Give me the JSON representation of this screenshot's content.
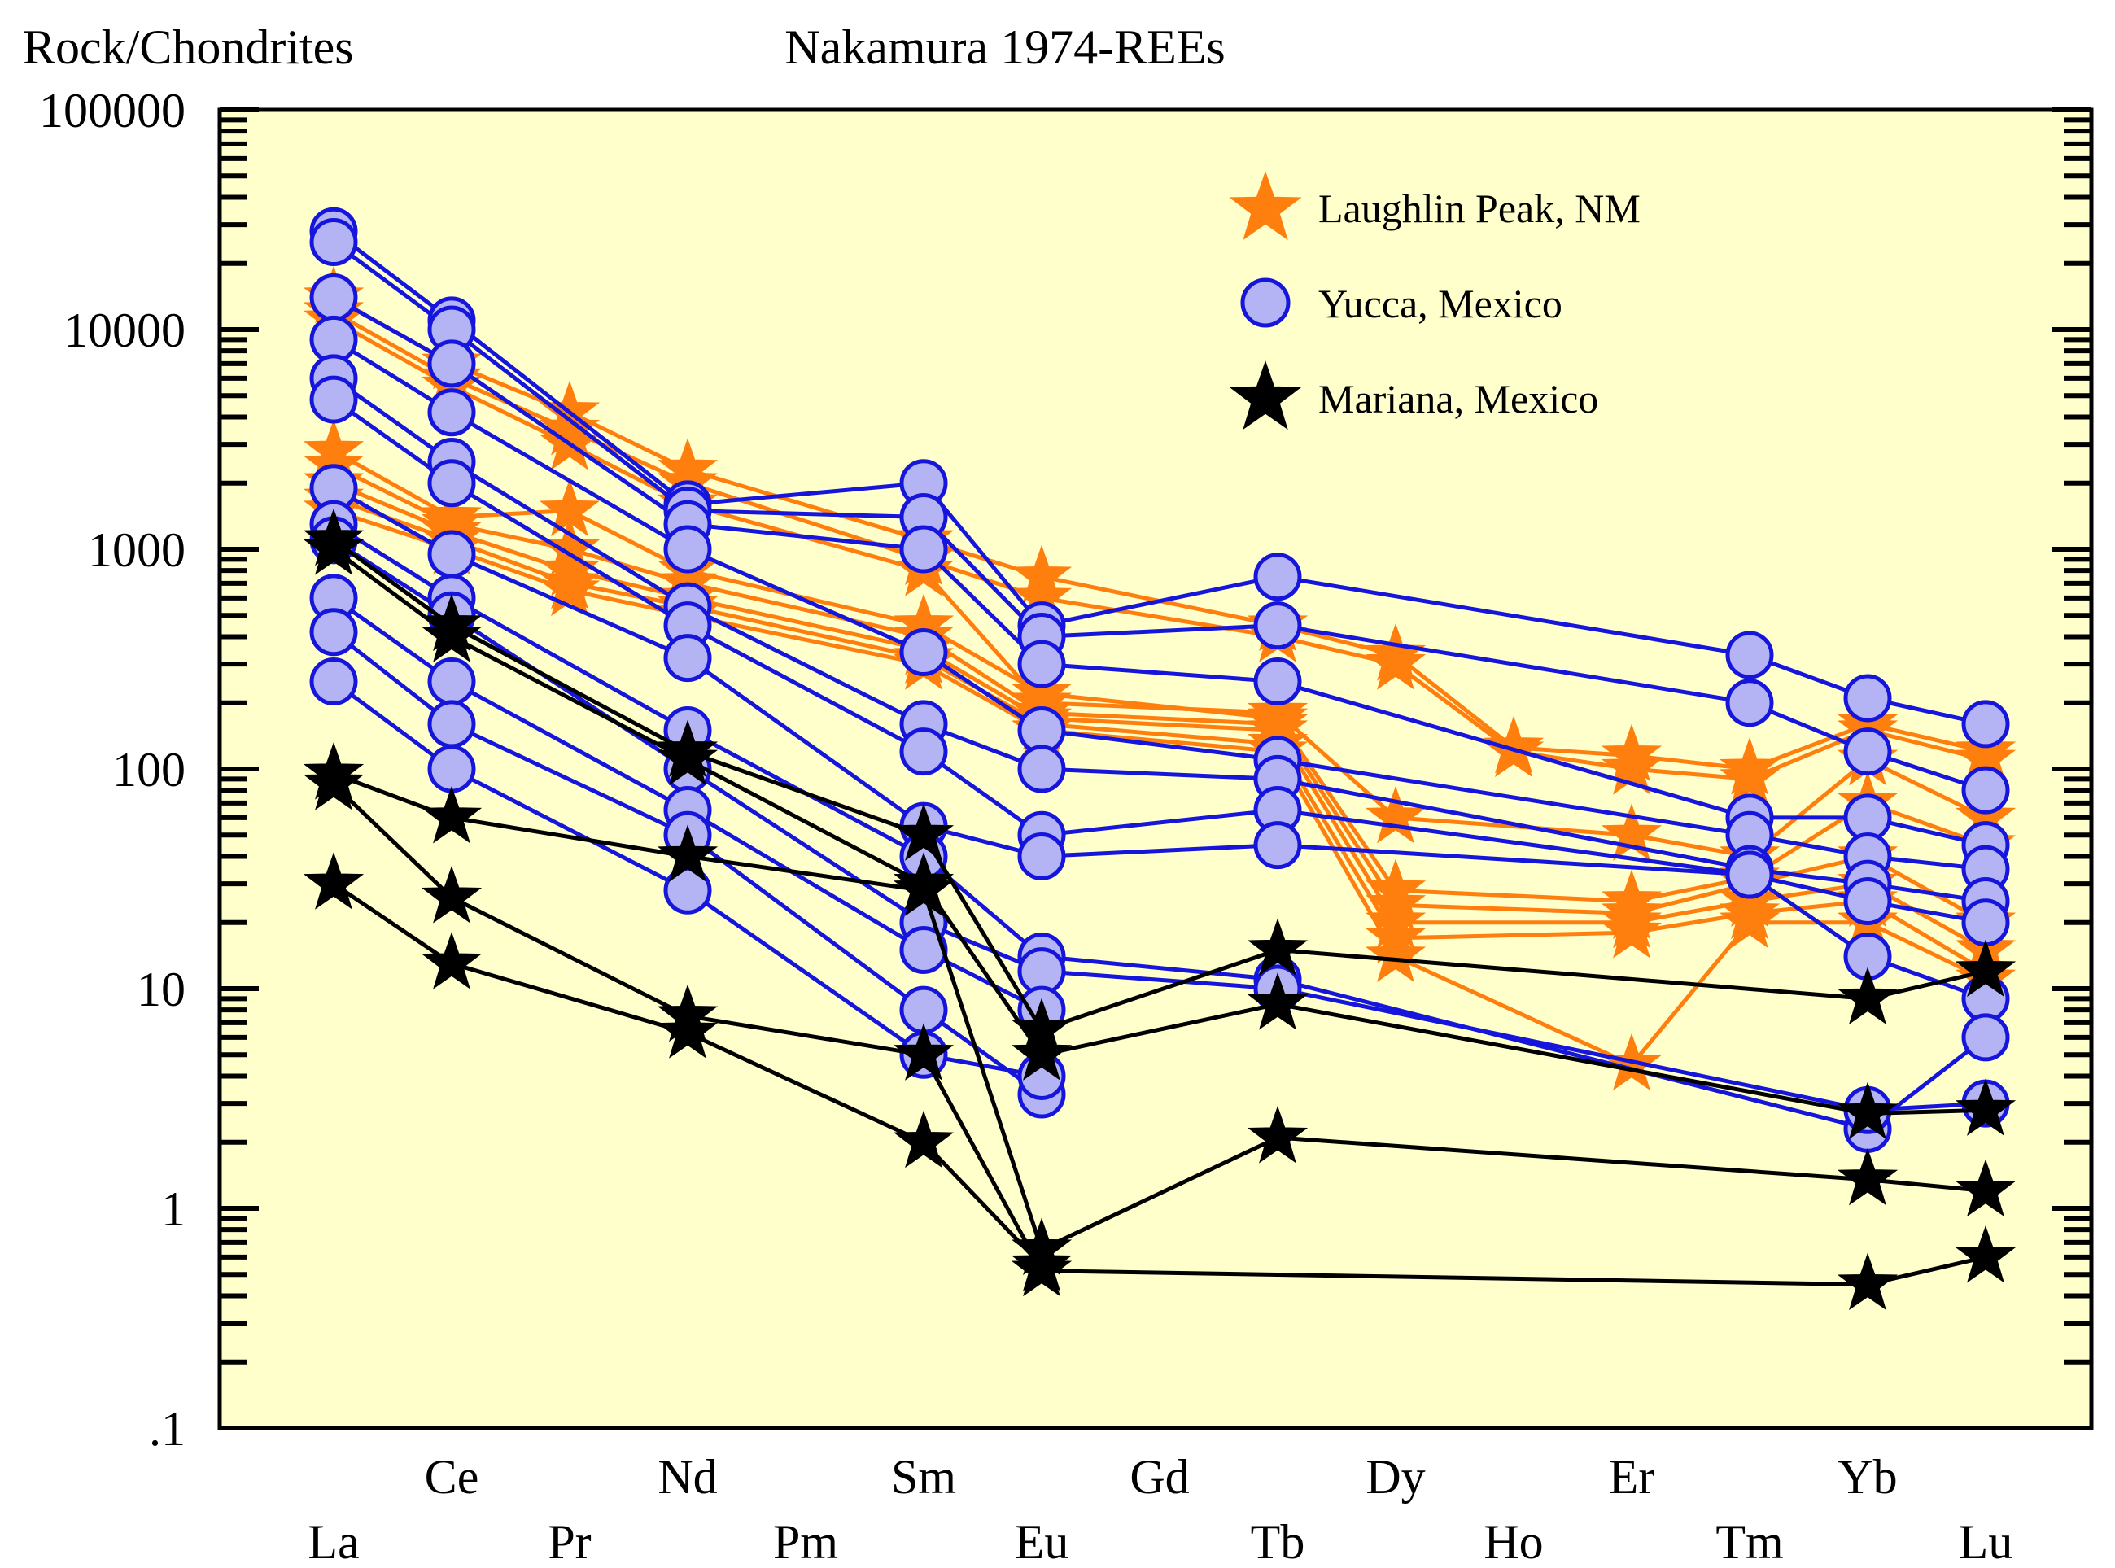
{
  "chart_data": {
    "type": "line",
    "title": "Nakamura 1974-REEs",
    "ylabel": "Rock/Chondrites",
    "yscale": "log",
    "ylim": [
      0.1,
      100000
    ],
    "y_tick_labels": [
      ".1",
      "1",
      "10",
      "100",
      "1000",
      "10000",
      "100000"
    ],
    "elements_upper_row": [
      "Ce",
      "Nd",
      "Sm",
      "Gd",
      "Dy",
      "Er",
      "Yb"
    ],
    "elements_lower_row": [
      "La",
      "Pr",
      "Pm",
      "Eu",
      "Tb",
      "Ho",
      "Tm",
      "Lu"
    ],
    "element_order": [
      "La",
      "Ce",
      "Pr",
      "Nd",
      "Pm",
      "Sm",
      "Eu",
      "Gd",
      "Tb",
      "Dy",
      "Ho",
      "Er",
      "Tm",
      "Yb",
      "Lu"
    ],
    "colors": {
      "plot_background": "#ffffcc",
      "laughlin": "#ff7f0e",
      "yucca_line": "#1515dc",
      "yucca_fill": "#b4b4f5",
      "mariana": "#000000"
    },
    "legend": [
      {
        "label": "Laughlin Peak, NM",
        "marker": "star",
        "color": "#ff7f0e"
      },
      {
        "label": "Yucca, Mexico",
        "marker": "circle",
        "color": "#b4b4f5"
      },
      {
        "label": "Mariana, Mexico",
        "marker": "star",
        "color": "#000000"
      }
    ],
    "series_groups": [
      {
        "name": "Laughlin Peak, NM",
        "marker": "star",
        "series": [
          {
            "x": [
              "La",
              "Ce",
              "Pr",
              "Nd",
              "Sm",
              "Eu",
              "Tb",
              "Dy",
              "Ho",
              "Er",
              "Tm",
              "Yb",
              "Lu"
            ],
            "values": [
              14000,
              7000,
              4200,
              2300,
              1100,
              750,
              450,
              330,
              125,
              115,
              100,
              160,
              120
            ]
          },
          {
            "x": [
              "La",
              "Ce",
              "Pr",
              "Nd",
              "Sm",
              "Eu",
              "Tb",
              "Dy",
              "Ho",
              "Er",
              "Tm",
              "Yb",
              "Lu"
            ],
            "values": [
              12000,
              6000,
              3500,
              2000,
              900,
              600,
              400,
              300,
              120,
              100,
              90,
              150,
              110
            ]
          },
          {
            "x": [
              "La",
              "Ce",
              "Pr",
              "Nd",
              "Sm",
              "Eu",
              "Tb",
              "Dy",
              "Er",
              "Tm",
              "Yb",
              "Lu"
            ],
            "values": [
              11000,
              5500,
              3000,
              1600,
              800,
              200,
              180,
              60,
              50,
              40,
              110,
              60
            ]
          },
          {
            "x": [
              "La",
              "Ce",
              "Pr",
              "Nd",
              "Sm",
              "Eu",
              "Tb",
              "Dy",
              "Er",
              "Tm",
              "Yb",
              "Lu"
            ],
            "values": [
              2800,
              1400,
              1500,
              800,
              450,
              220,
              170,
              28,
              25,
              32,
              70,
              45
            ]
          },
          {
            "x": [
              "La",
              "Ce",
              "Pr",
              "Nd",
              "Sm",
              "Eu",
              "Tb",
              "Dy",
              "Er",
              "Tm",
              "Yb",
              "Lu"
            ],
            "values": [
              2400,
              1300,
              1000,
              700,
              400,
              180,
              160,
              24,
              22,
              30,
              40,
              20
            ]
          },
          {
            "x": [
              "La",
              "Ce",
              "Pr",
              "Nd",
              "Sm",
              "Eu",
              "Tb",
              "Dy",
              "Er",
              "Tm",
              "Yb",
              "Lu"
            ],
            "values": [
              2000,
              1200,
              800,
              600,
              350,
              170,
              150,
              20,
              20,
              25,
              30,
              15
            ]
          },
          {
            "x": [
              "La",
              "Ce",
              "Pr",
              "Nd",
              "Sm",
              "Eu",
              "Tb",
              "Dy",
              "Er",
              "Tm",
              "Yb",
              "Lu"
            ],
            "values": [
              1700,
              1100,
              700,
              550,
              320,
              160,
              130,
              17,
              18,
              22,
              25,
              12
            ]
          },
          {
            "x": [
              "La",
              "Ce",
              "Pr",
              "Nd",
              "Sm",
              "Eu",
              "Tb",
              "Dy",
              "Er",
              "Tm",
              "Yb",
              "Lu"
            ],
            "values": [
              1500,
              1000,
              650,
              500,
              300,
              150,
              120,
              14,
              4.5,
              20,
              20,
              11
            ]
          }
        ]
      },
      {
        "name": "Yucca, Mexico",
        "marker": "circle",
        "series": [
          {
            "x": [
              "La",
              "Ce",
              "Nd",
              "Sm",
              "Eu",
              "Tb",
              "Tm",
              "Yb",
              "Lu"
            ],
            "values": [
              28000,
              11000,
              1600,
              2000,
              450,
              750,
              330,
              210,
              160
            ]
          },
          {
            "x": [
              "La",
              "Ce",
              "Nd",
              "Sm",
              "Eu",
              "Tb",
              "Tm",
              "Yb",
              "Lu"
            ],
            "values": [
              25000,
              10000,
              1500,
              1400,
              400,
              450,
              200,
              120,
              80
            ]
          },
          {
            "x": [
              "La",
              "Ce",
              "Nd",
              "Sm",
              "Eu",
              "Tb",
              "Tm",
              "Yb",
              "Lu"
            ],
            "values": [
              14000,
              7000,
              1300,
              1000,
              300,
              250,
              60,
              60,
              45
            ]
          },
          {
            "x": [
              "La",
              "Ce",
              "Nd",
              "Sm",
              "Eu",
              "Tb",
              "Tm",
              "Yb",
              "Lu"
            ],
            "values": [
              9000,
              4200,
              1000,
              340,
              150,
              110,
              50,
              40,
              35
            ]
          },
          {
            "x": [
              "La",
              "Ce",
              "Nd",
              "Sm",
              "Eu",
              "Tb",
              "Tm",
              "Yb",
              "Lu"
            ],
            "values": [
              6000,
              2500,
              550,
              160,
              100,
              90,
              35,
              30,
              25
            ]
          },
          {
            "x": [
              "La",
              "Ce",
              "Nd",
              "Sm",
              "Eu",
              "Tb",
              "Tm",
              "Yb",
              "Lu"
            ],
            "values": [
              4800,
              2000,
              450,
              120,
              50,
              65,
              33,
              25,
              20
            ]
          },
          {
            "x": [
              "La",
              "Ce",
              "Nd",
              "Sm",
              "Eu",
              "Tb",
              "Tm",
              "Yb",
              "Lu"
            ],
            "values": [
              1900,
              950,
              320,
              55,
              40,
              45,
              33,
              14,
              9
            ]
          },
          {
            "x": [
              "La",
              "Ce",
              "Nd",
              "Sm",
              "Eu",
              "Tb",
              "Yb",
              "Lu"
            ],
            "values": [
              1300,
              600,
              150,
              40,
              14,
              11,
              2.3,
              6
            ]
          },
          {
            "x": [
              "La",
              "Ce",
              "Nd",
              "Sm",
              "Eu",
              "Tb",
              "Yb",
              "Lu"
            ],
            "values": [
              1100,
              500,
              100,
              20,
              12,
              10,
              2.8,
              3
            ]
          },
          {
            "x": [
              "La",
              "Ce",
              "Nd",
              "Sm",
              "Eu"
            ],
            "values": [
              600,
              250,
              65,
              15,
              8
            ]
          },
          {
            "x": [
              "La",
              "Ce",
              "Nd",
              "Sm",
              "Eu"
            ],
            "values": [
              420,
              160,
              50,
              8,
              3.3
            ]
          },
          {
            "x": [
              "La",
              "Ce",
              "Nd",
              "Sm",
              "Eu"
            ],
            "values": [
              250,
              100,
              28,
              5,
              4
            ]
          }
        ]
      },
      {
        "name": "Mariana, Mexico",
        "marker": "star",
        "series": [
          {
            "x": [
              "La",
              "Ce",
              "Nd",
              "Sm",
              "Eu",
              "Tb",
              "Yb",
              "Lu"
            ],
            "values": [
              1100,
              450,
              120,
              50,
              6.5,
              15,
              9,
              12
            ]
          },
          {
            "x": [
              "La",
              "Ce",
              "Nd",
              "Sm",
              "Eu",
              "Tb",
              "Yb",
              "Lu"
            ],
            "values": [
              1000,
              400,
              110,
              30,
              5,
              8.5,
              2.7,
              2.8
            ]
          },
          {
            "x": [
              "La",
              "Ce",
              "Nd",
              "Sm",
              "Eu",
              "Tb",
              "Yb",
              "Lu"
            ],
            "values": [
              95,
              60,
              40,
              28,
              0.65,
              2.1,
              1.35,
              1.2
            ]
          },
          {
            "x": [
              "La",
              "Ce",
              "Nd",
              "Sm",
              "Eu",
              "Yb",
              "Lu"
            ],
            "values": [
              85,
              26,
              7.5,
              5,
              0.52,
              0.45,
              0.6
            ]
          },
          {
            "x": [
              "La",
              "Ce",
              "Nd",
              "Sm",
              "Eu"
            ],
            "values": [
              30,
              13,
              6.3,
              2,
              0.55
            ]
          }
        ]
      }
    ]
  }
}
